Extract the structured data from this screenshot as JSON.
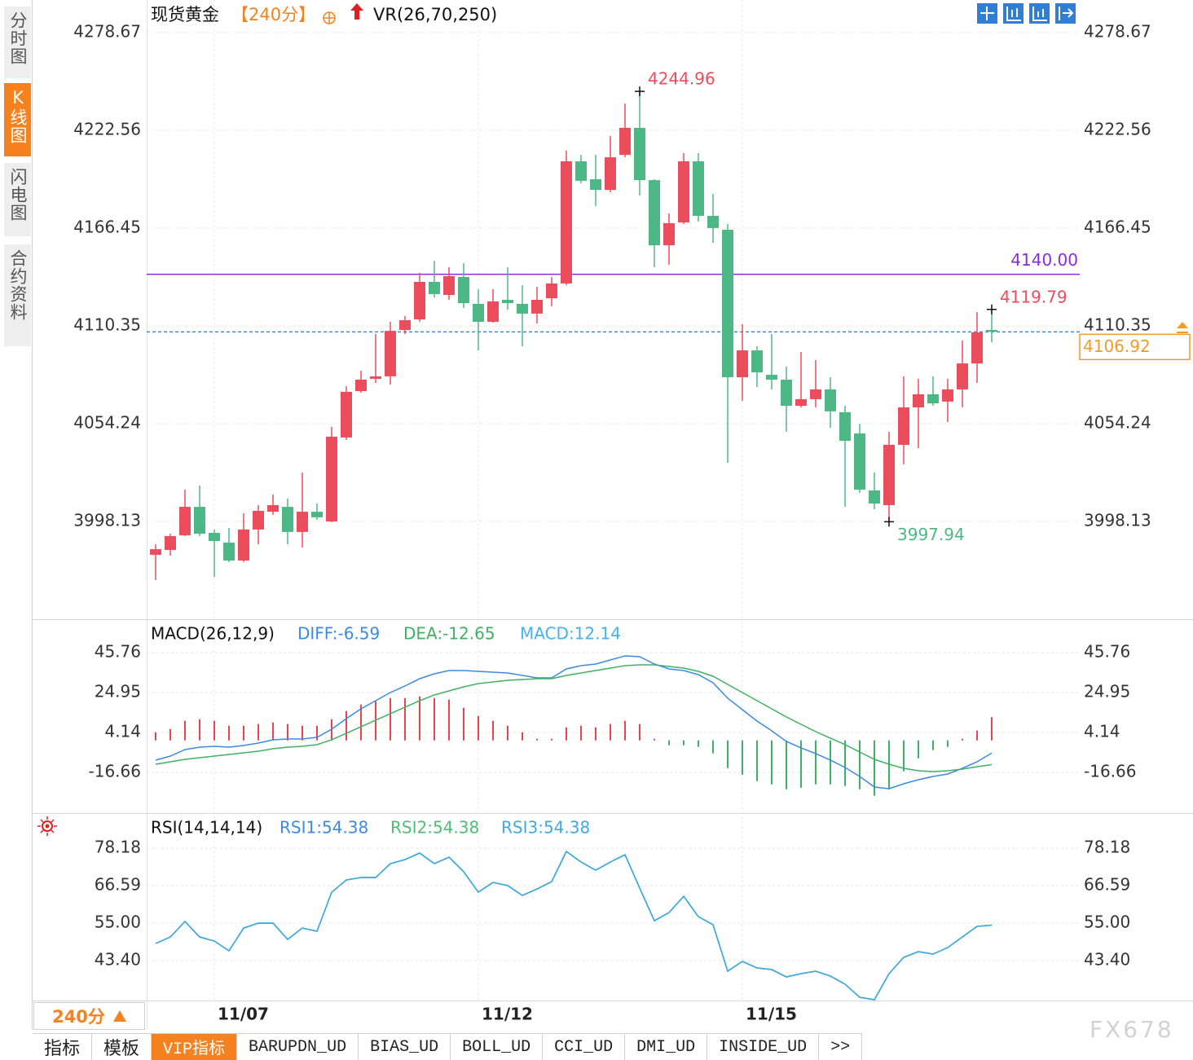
{
  "ui": {
    "side_tabs": [
      "分时图",
      "K线图",
      "闪电图",
      "合约资料"
    ],
    "instrument": "现货黄金",
    "period": "【240分】",
    "indicator": "VR(26,70,250)",
    "period_button": "240分",
    "bottom_tabs": [
      "指标",
      "模板",
      "VIP指标",
      "BARUPDN_UD",
      "BIAS_UD",
      "BOLL_UD",
      "CCI_UD",
      "DMI_UD",
      "INSIDE_UD",
      ">>"
    ],
    "watermark": "FX678"
  },
  "chart_data": [
    {
      "type": "candlestick",
      "categories": [
        null,
        null,
        null,
        null,
        "11/07",
        null,
        null,
        null,
        null,
        null,
        null,
        null,
        null,
        null,
        null,
        null,
        null,
        null,
        null,
        null,
        null,
        null,
        "11/12",
        null,
        null,
        null,
        null,
        null,
        null,
        null,
        null,
        null,
        null,
        null,
        null,
        null,
        null,
        null,
        null,
        null,
        "11/15",
        null,
        null,
        null,
        null,
        null,
        null,
        null,
        null,
        null,
        null,
        null,
        null,
        null,
        null,
        null,
        null,
        null
      ],
      "open": [
        3979.0,
        3981.8,
        3990.2,
        4006.5,
        3991.6,
        3986.0,
        3975.7,
        3993.5,
        4003.7,
        4006.5,
        3992.1,
        4003.7,
        3998.1,
        4046.3,
        4072.9,
        4080.0,
        4081.4,
        4108.0,
        4114.1,
        4135.6,
        4128.1,
        4138.4,
        4123.0,
        4112.7,
        4125.3,
        4123.0,
        4117.4,
        4126.2,
        4134.7,
        4204.8,
        4194.5,
        4188.4,
        4208.5,
        4224.0,
        4194.0,
        4156.6,
        4169.7,
        4204.8,
        4173.5,
        4165.5,
        4080.9,
        4096.3,
        4082.3,
        4079.5,
        4064.5,
        4068.3,
        4073.9,
        4060.8,
        4048.6,
        4015.9,
        4007.5,
        4042.1,
        4063.6,
        4071.1,
        4066.9,
        4073.9,
        4088.8,
        4108.0
      ],
      "high": [
        3985.0,
        3991.1,
        4016.4,
        4018.7,
        3993.5,
        3994.4,
        4002.8,
        4007.5,
        4013.6,
        4011.2,
        4026.2,
        4008.4,
        4052.4,
        4075.7,
        4084.6,
        4105.7,
        4112.7,
        4116.0,
        4140.7,
        4147.8,
        4144.0,
        4146.3,
        4131.4,
        4131.4,
        4144.0,
        4133.7,
        4132.8,
        4138.4,
        4210.9,
        4208.5,
        4208.5,
        4219.3,
        4238.0,
        4244.96,
        4194.5,
        4174.9,
        4209.5,
        4209.5,
        4186.1,
        4168.8,
        4111.3,
        4098.7,
        4105.7,
        4087.0,
        4095.4,
        4090.7,
        4080.9,
        4064.5,
        4054.2,
        4026.2,
        4049.6,
        4081.4,
        4080.0,
        4081.4,
        4080.0,
        4101.9,
        4118.3,
        4119.79
      ],
      "low": [
        3964.5,
        3978.5,
        3989.7,
        3989.7,
        3966.3,
        3974.8,
        3974.8,
        3985.0,
        4001.9,
        3985.0,
        3983.2,
        3999.1,
        3997.7,
        4044.9,
        4072.0,
        4077.6,
        4076.7,
        4105.7,
        4112.7,
        4126.7,
        4125.3,
        4120.6,
        4096.3,
        4112.2,
        4119.7,
        4098.7,
        4111.7,
        4121.6,
        4133.7,
        4192.2,
        4179.1,
        4187.0,
        4207.1,
        4185.2,
        4144.0,
        4145.4,
        4168.8,
        4170.2,
        4158.0,
        4031.8,
        4067.3,
        4075.3,
        4073.9,
        4049.6,
        4063.6,
        4063.6,
        4051.9,
        4006.5,
        4014.5,
        4005.1,
        3997.94,
        4030.9,
        4040.2,
        4064.5,
        4055.2,
        4063.6,
        4077.6,
        4101.0
      ],
      "close": [
        3982.2,
        3989.7,
        4006.5,
        3991.1,
        3986.9,
        3975.7,
        3993.5,
        4004.2,
        4007.5,
        3992.1,
        4003.7,
        4000.5,
        4046.8,
        4072.5,
        4079.5,
        4081.4,
        4107.5,
        4113.6,
        4135.6,
        4128.6,
        4138.9,
        4123.4,
        4112.7,
        4124.4,
        4123.4,
        4117.4,
        4125.3,
        4134.7,
        4204.8,
        4193.6,
        4188.4,
        4207.1,
        4224.0,
        4194.0,
        4156.6,
        4169.3,
        4204.8,
        4173.5,
        4166.5,
        4080.9,
        4096.3,
        4083.7,
        4079.5,
        4064.5,
        4068.3,
        4073.9,
        4061.3,
        4044.4,
        4016.4,
        4008.4,
        4042.1,
        4063.6,
        4071.1,
        4065.9,
        4073.9,
        4088.8,
        4106.6,
        4106.92
      ],
      "up_color": "#ec4d5c",
      "down_color": "#4db886",
      "ylim": [
        3942.02,
        4297.37
      ],
      "yticks": [
        4278.67,
        4222.56,
        4166.45,
        4110.35,
        4054.24,
        3998.13
      ],
      "grid": true,
      "annotations": [
        4244.96,
        3997.94,
        4119.79
      ],
      "reference_line": {
        "value": 4140,
        "label": "4140.00"
      },
      "reference_color": "#8a2be2",
      "last_price": 4106.92,
      "last_price_color": "#f39a2a",
      "last_price_line_color": "#2f8cf0"
    },
    {
      "type": "combo",
      "title": "MACD(26,12,9)",
      "ylim": [
        -37.91,
        63.17
      ],
      "yticks": [
        45.76,
        24.95,
        4.14,
        -16.66
      ],
      "grid": true,
      "series": [
        {
          "name": "DIFF:-6.59",
          "type": "line",
          "color": "#3a8ae6",
          "values": [
            -10.3,
            -8.18,
            -4.78,
            -3.51,
            -3.08,
            -3.51,
            -2.66,
            -1.38,
            0.32,
            0.74,
            0.74,
            1.59,
            5.84,
            11.36,
            16.46,
            20.7,
            24.95,
            28.35,
            32.17,
            34.72,
            36.42,
            36.42,
            35.99,
            35.57,
            35.14,
            33.87,
            32.59,
            32.59,
            37.27,
            38.96,
            39.81,
            41.94,
            44.06,
            43.64,
            39.81,
            37.27,
            36.42,
            34.29,
            30.05,
            21.98,
            16.03,
            10.09,
            4.99,
            -0.53,
            -3.93,
            -6.9,
            -10.3,
            -14.12,
            -18.79,
            -24.32,
            -25.16,
            -22.62,
            -20.49,
            -18.79,
            -17.52,
            -14.55,
            -11.15,
            -6.59
          ]
        },
        {
          "name": "DEA:-12.65",
          "type": "line",
          "color": "#3fb163",
          "values": [
            -12.42,
            -11.15,
            -9.88,
            -9.03,
            -8.18,
            -7.33,
            -6.48,
            -5.63,
            -4.35,
            -3.51,
            -3.08,
            -2.23,
            0.32,
            3.71,
            7.11,
            10.51,
            13.91,
            17.31,
            20.7,
            23.68,
            25.8,
            27.92,
            29.62,
            30.47,
            31.32,
            31.74,
            32.17,
            32.17,
            33.87,
            35.14,
            36.42,
            37.69,
            38.96,
            39.39,
            39.39,
            38.54,
            37.69,
            35.99,
            33.44,
            29.2,
            24.95,
            20.7,
            16.46,
            12.21,
            8.39,
            4.56,
            1.17,
            -2.23,
            -6.05,
            -9.88,
            -12.42,
            -14.55,
            -15.82,
            -16.25,
            -15.82,
            -14.97,
            -13.7,
            -12.65
          ]
        },
        {
          "name": "MACD:12.14",
          "type": "bar",
          "color": "#e8434f",
          "negative_color": "#3fb163",
          "legend_color": "#45b0ea",
          "values": [
            4.24,
            5.94,
            10.2,
            11.04,
            10.2,
            7.64,
            7.64,
            8.5,
            9.34,
            8.5,
            7.64,
            7.64,
            11.04,
            15.3,
            18.7,
            20.38,
            22.08,
            22.08,
            22.94,
            22.08,
            21.24,
            17.0,
            12.74,
            10.2,
            7.64,
            4.26,
            0.84,
            0.84,
            6.8,
            7.64,
            6.78,
            8.5,
            10.2,
            8.5,
            0.84,
            -2.54,
            -2.54,
            -3.4,
            -6.78,
            -14.44,
            -17.84,
            -21.22,
            -22.94,
            -25.48,
            -24.64,
            -22.92,
            -22.94,
            -23.78,
            -25.48,
            -28.88,
            -25.48,
            -16.14,
            -9.34,
            -5.08,
            -3.4,
            0.84,
            5.1,
            12.14
          ]
        }
      ]
    },
    {
      "type": "line",
      "title": "RSI(14,14,14)",
      "ylim": [
        31.06,
        89.02
      ],
      "yticks": [
        78.18,
        66.59,
        {
          "value": 55,
          "label": "55.00"
        },
        {
          "value": 43.4,
          "label": "43.40"
        }
      ],
      "grid": true,
      "series": [
        {
          "name": "RSI1:54.38",
          "color": "#3a8ae6",
          "values": [
            48.7,
            50.71,
            55.5,
            50.71,
            49.45,
            46.43,
            53.48,
            55.0,
            55.0,
            49.96,
            53.48,
            52.48,
            64.57,
            68.35,
            69.11,
            69.11,
            73.39,
            74.65,
            76.67,
            73.39,
            75.41,
            70.87,
            64.57,
            67.6,
            66.59,
            63.56,
            65.58,
            67.85,
            77.17,
            73.9,
            71.38,
            73.9,
            76.16,
            65.83,
            55.75,
            58.27,
            63.31,
            57.01,
            54.49,
            40.13,
            43.15,
            41.14,
            40.63,
            38.36,
            39.37,
            40.13,
            38.62,
            36.1,
            32.06,
            31.31,
            39.37,
            44.41,
            46.18,
            45.42,
            47.44,
            50.71,
            53.99,
            54.38
          ]
        },
        {
          "name": "RSI2:54.38",
          "color": "#4cbf75",
          "values": [
            48.7,
            50.71,
            55.5,
            50.71,
            49.45,
            46.43,
            53.48,
            55.0,
            55.0,
            49.96,
            53.48,
            52.48,
            64.57,
            68.35,
            69.11,
            69.11,
            73.39,
            74.65,
            76.67,
            73.39,
            75.41,
            70.87,
            64.57,
            67.6,
            66.59,
            63.56,
            65.58,
            67.85,
            77.17,
            73.9,
            71.38,
            73.9,
            76.16,
            65.83,
            55.75,
            58.27,
            63.31,
            57.01,
            54.49,
            40.13,
            43.15,
            41.14,
            40.63,
            38.36,
            39.37,
            40.13,
            38.62,
            36.1,
            32.06,
            31.31,
            39.37,
            44.41,
            46.18,
            45.42,
            47.44,
            50.71,
            53.99,
            54.38
          ]
        },
        {
          "name": "RSI3:54.38",
          "color": "#3fa9e6",
          "values": [
            48.7,
            50.71,
            55.5,
            50.71,
            49.45,
            46.43,
            53.48,
            55.0,
            55.0,
            49.96,
            53.48,
            52.48,
            64.57,
            68.35,
            69.11,
            69.11,
            73.39,
            74.65,
            76.67,
            73.39,
            75.41,
            70.87,
            64.57,
            67.6,
            66.59,
            63.56,
            65.58,
            67.85,
            77.17,
            73.9,
            71.38,
            73.9,
            76.16,
            65.83,
            55.75,
            58.27,
            63.31,
            57.01,
            54.49,
            40.13,
            43.15,
            41.14,
            40.63,
            38.36,
            39.37,
            40.13,
            38.62,
            36.1,
            32.06,
            31.31,
            39.37,
            44.41,
            46.18,
            45.42,
            47.44,
            50.71,
            53.99,
            54.38
          ]
        }
      ]
    }
  ]
}
